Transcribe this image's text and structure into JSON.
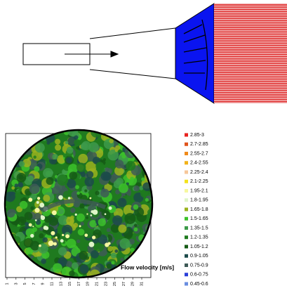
{
  "title": "Flow velocity [m/s]",
  "axis": {
    "ticks": [
      "1",
      "3",
      "5",
      "7",
      "9",
      "11",
      "13",
      "15",
      "17",
      "19",
      "21",
      "23",
      "25",
      "27",
      "29",
      "31"
    ]
  },
  "legend": {
    "items": [
      {
        "label": "2.85-3",
        "color": "#e8231f"
      },
      {
        "label": "2.7-2.85",
        "color": "#e0531c"
      },
      {
        "label": "2.55-2.7",
        "color": "#f08a1a"
      },
      {
        "label": "2.4-2.55",
        "color": "#f2b21a"
      },
      {
        "label": "2.25-2.4",
        "color": "#f6c79a"
      },
      {
        "label": "2.1-2.25",
        "color": "#f4e21c"
      },
      {
        "label": "1.95-2.1",
        "color": "#f6f7a0"
      },
      {
        "label": "1.8-1.95",
        "color": "#dff5c8"
      },
      {
        "label": "1.65-1.8",
        "color": "#9ab21e"
      },
      {
        "label": "1.5-1.65",
        "color": "#3cc22a"
      },
      {
        "label": "1.35-1.5",
        "color": "#3d9a4a"
      },
      {
        "label": "1.2-1.35",
        "color": "#1f7a1f"
      },
      {
        "label": "1.05-1.2",
        "color": "#155a15"
      },
      {
        "label": "0.9-1.05",
        "color": "#1c4a4a"
      },
      {
        "label": "0.75-0.9",
        "color": "#3e5a56"
      },
      {
        "label": "0.6-0.75",
        "color": "#2a3fd8"
      },
      {
        "label": "0.45-0.6",
        "color": "#6a8ee0"
      }
    ]
  }
}
